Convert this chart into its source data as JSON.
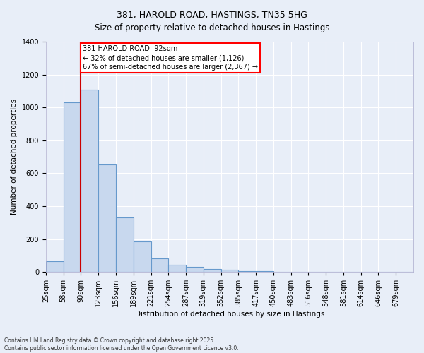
{
  "title_line1": "381, HAROLD ROAD, HASTINGS, TN35 5HG",
  "title_line2": "Size of property relative to detached houses in Hastings",
  "xlabel": "Distribution of detached houses by size in Hastings",
  "ylabel": "Number of detached properties",
  "bar_color": "#c8d8ee",
  "bar_edge_color": "#6699cc",
  "background_color": "#e8eef8",
  "grid_color": "#ffffff",
  "bins": [
    "25sqm",
    "58sqm",
    "90sqm",
    "123sqm",
    "156sqm",
    "189sqm",
    "221sqm",
    "254sqm",
    "287sqm",
    "319sqm",
    "352sqm",
    "385sqm",
    "417sqm",
    "450sqm",
    "483sqm",
    "516sqm",
    "548sqm",
    "581sqm",
    "614sqm",
    "646sqm",
    "679sqm"
  ],
  "values": [
    65,
    1030,
    1110,
    655,
    330,
    185,
    85,
    45,
    30,
    20,
    15,
    5,
    5,
    3,
    2,
    2,
    1,
    1,
    1,
    1,
    1
  ],
  "annotation_text": "381 HAROLD ROAD: 92sqm\n← 32% of detached houses are smaller (1,126)\n67% of semi-detached houses are larger (2,367) →",
  "annotation_box_color": "white",
  "annotation_edge_color": "red",
  "red_line_color": "#cc0000",
  "footnote": "Contains HM Land Registry data © Crown copyright and database right 2025.\nContains public sector information licensed under the Open Government Licence v3.0.",
  "ylim": [
    0,
    1400
  ],
  "red_line_bin_index": 2,
  "title_fontsize": 9,
  "axis_label_fontsize": 7.5,
  "tick_fontsize": 7,
  "annotation_fontsize": 7
}
